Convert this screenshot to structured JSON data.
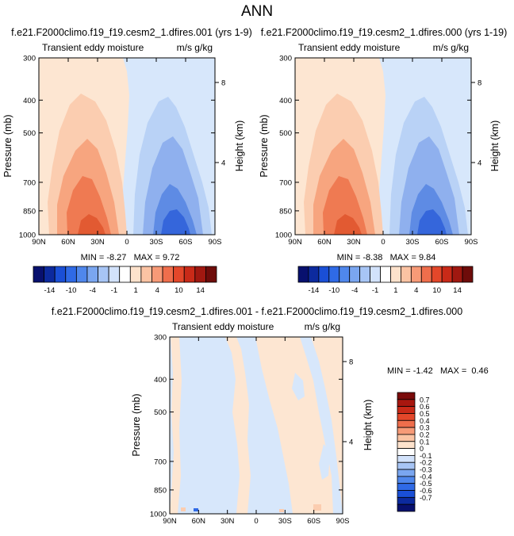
{
  "figure": {
    "title": "ANN",
    "colors": {
      "warm_light": "#fde6d2",
      "warm_mid1": "#fbcdb0",
      "warm_mid2": "#f7a57f",
      "warm_mid3": "#ef7a52",
      "warm_deep": "#e25a32",
      "cool_light": "#d7e7fb",
      "cool_mid1": "#b9d2f6",
      "cool_mid2": "#8fb0ee",
      "cool_mid3": "#5e8be4",
      "cool_deep": "#3566db"
    }
  },
  "chart_data": [
    {
      "type": "heatmap",
      "title": "f.e21.F2000climo.f19_f19.cesm2_1.dfires.001 (yrs 1-9)",
      "left_label": "Transient eddy moisture",
      "right_label": "m/s g/kg",
      "ylabel": "Pressure (mb)",
      "ylabel_right": "Height (km)",
      "x_ticks": [
        "90N",
        "60N",
        "30N",
        "0",
        "30S",
        "60S",
        "90S"
      ],
      "y_ticks": [
        "300",
        "400",
        "500",
        "700",
        "850",
        "1000"
      ],
      "y_ticks_right": [
        "8",
        "4"
      ],
      "stats": "MIN = -8.27   MAX = 9.72",
      "min": -8.27,
      "max": 9.72
    },
    {
      "type": "heatmap",
      "title": "f.e21.F2000climo.f19_f19.cesm2_1.dfires.000 (yrs 1-19)",
      "left_label": "Transient eddy moisture",
      "right_label": "m/s g/kg",
      "ylabel": "Pressure (mb)",
      "ylabel_right": "Height (km)",
      "x_ticks": [
        "90N",
        "60N",
        "30N",
        "0",
        "30S",
        "60S",
        "90S"
      ],
      "y_ticks": [
        "300",
        "400",
        "500",
        "700",
        "850",
        "1000"
      ],
      "y_ticks_right": [
        "8",
        "4"
      ],
      "stats": "MIN = -8.38   MAX = 9.84",
      "min": -8.38,
      "max": 9.84
    },
    {
      "type": "heatmap",
      "title": "f.e21.F2000climo.f19_f19.cesm2_1.dfires.001 - f.e21.F2000climo.f19_f19.cesm2_1.dfires.000",
      "left_label": "Transient eddy moisture",
      "right_label": "m/s g/kg",
      "ylabel": "Pressure (mb)",
      "ylabel_right": "Height (km)",
      "x_ticks": [
        "90N",
        "60N",
        "30N",
        "0",
        "30S",
        "60S",
        "90S"
      ],
      "y_ticks": [
        "300",
        "400",
        "500",
        "700",
        "850",
        "1000"
      ],
      "y_ticks_right": [
        "8",
        "4"
      ],
      "stats": "MIN = -1.42   MAX =  0.46",
      "min": -1.42,
      "max": 0.46
    }
  ],
  "colorbar_top": {
    "labels": [
      "-14",
      "-10",
      "-4",
      "-1",
      "1",
      "4",
      "10",
      "14"
    ],
    "colors": [
      "#08106e",
      "#0c2a9e",
      "#1a4fd6",
      "#2f6ae6",
      "#4f87ec",
      "#7aa6f0",
      "#a7c5f5",
      "#d2e2fb",
      "#ffffff",
      "#fde2cc",
      "#fbc3a3",
      "#f79a77",
      "#ef6e4c",
      "#e3472a",
      "#c92a18",
      "#a01810",
      "#6e0c0a"
    ]
  },
  "colorbar_bottom": {
    "labels": [
      "0.7",
      "0.6",
      "0.5",
      "0.4",
      "0.3",
      "0.2",
      "0.1",
      "0",
      "-0.1",
      "-0.2",
      "-0.3",
      "-0.4",
      "-0.5",
      "-0.6",
      "-0.7"
    ],
    "colors": [
      "#7a0a0a",
      "#a8170f",
      "#c92a18",
      "#e3472a",
      "#ef6e4c",
      "#f79a77",
      "#fbc3a3",
      "#fde2cc",
      "#ffffff",
      "#d2e2fb",
      "#a7c5f5",
      "#7aa6f0",
      "#4f87ec",
      "#2f6ae6",
      "#1a4fd6",
      "#0c2a9e",
      "#08106e"
    ]
  }
}
